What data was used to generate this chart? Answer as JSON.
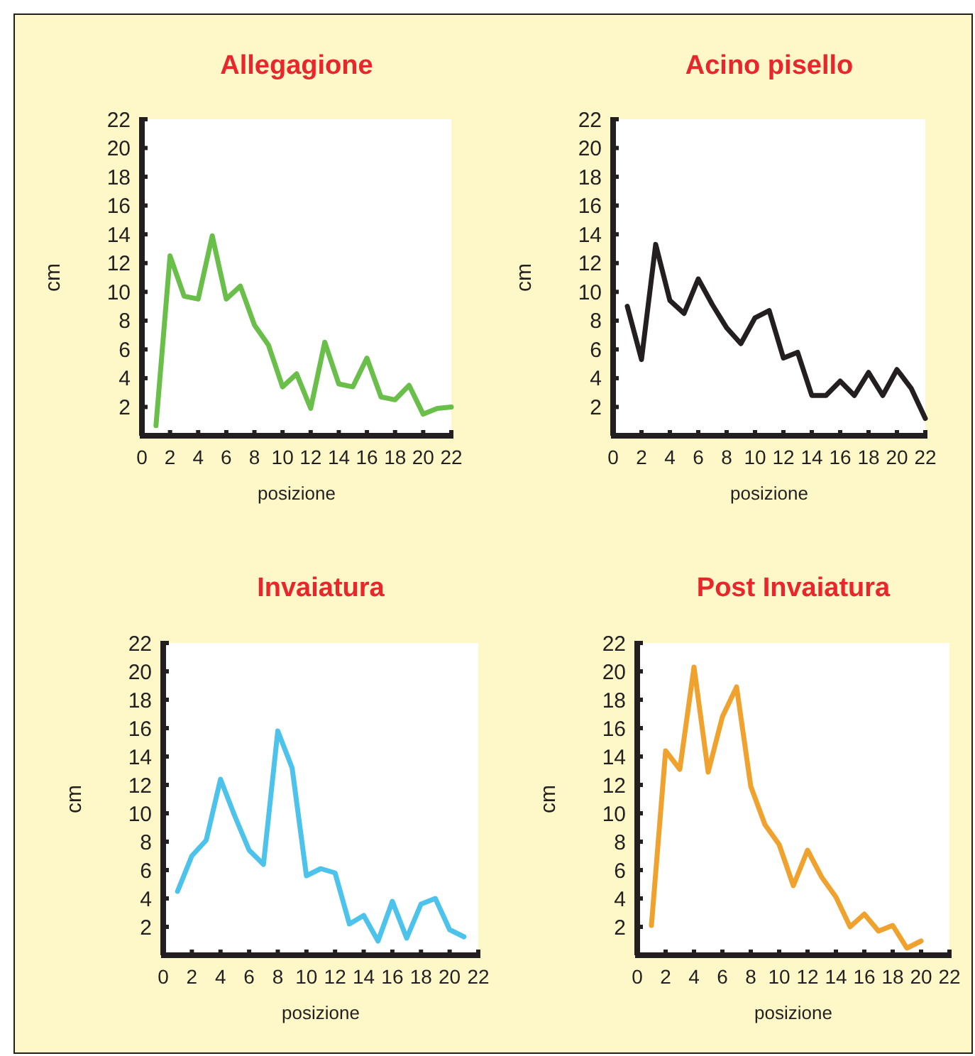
{
  "chart_data": [
    {
      "type": "line",
      "title": "Allegagione",
      "xlabel": "posizione",
      "ylabel": "cm",
      "x": [
        1,
        2,
        3,
        4,
        5,
        6,
        7,
        8,
        9,
        10,
        11,
        12,
        13,
        14,
        15,
        16,
        17,
        18,
        19,
        20,
        21,
        22
      ],
      "series": [
        {
          "color": "#6abf4b",
          "values": [
            0.7,
            12.5,
            9.7,
            9.5,
            13.9,
            9.5,
            10.4,
            7.7,
            6.3,
            3.4,
            4.3,
            1.9,
            6.5,
            3.6,
            3.4,
            5.4,
            2.7,
            2.5,
            3.5,
            1.5,
            1.9,
            2.0
          ]
        }
      ],
      "xlim": [
        0,
        22
      ],
      "xticks": [
        0,
        2,
        4,
        6,
        8,
        10,
        12,
        14,
        16,
        18,
        20,
        22
      ],
      "ylim": [
        0,
        22
      ],
      "yticks": [
        2,
        4,
        6,
        8,
        10,
        12,
        14,
        16,
        18,
        20,
        22
      ],
      "grid": false,
      "marker": "none",
      "line_style": "solid"
    },
    {
      "type": "line",
      "title": "Acino pisello",
      "xlabel": "posizione",
      "ylabel": "cm",
      "x": [
        1,
        2,
        3,
        4,
        5,
        6,
        7,
        8,
        9,
        10,
        11,
        12,
        13,
        14,
        15,
        16,
        17,
        18,
        19,
        20,
        21,
        22
      ],
      "series": [
        {
          "color": "#231f20",
          "values": [
            9.0,
            5.3,
            13.3,
            9.4,
            8.5,
            10.9,
            9.1,
            7.5,
            6.4,
            8.2,
            8.7,
            5.4,
            5.8,
            2.8,
            2.8,
            3.8,
            2.8,
            4.4,
            2.8,
            4.6,
            3.3,
            1.2
          ]
        }
      ],
      "xlim": [
        0,
        22
      ],
      "xticks": [
        0,
        2,
        4,
        6,
        8,
        10,
        12,
        14,
        16,
        18,
        20,
        22
      ],
      "ylim": [
        0,
        22
      ],
      "yticks": [
        2,
        4,
        6,
        8,
        10,
        12,
        14,
        16,
        18,
        20,
        22
      ],
      "grid": false,
      "marker": "none",
      "line_style": "solid"
    },
    {
      "type": "line",
      "title": "Invaiatura",
      "xlabel": "posizione",
      "ylabel": "cm",
      "x": [
        1,
        2,
        3,
        4,
        5,
        6,
        7,
        8,
        9,
        10,
        11,
        12,
        13,
        14,
        15,
        16,
        17,
        18,
        19,
        20,
        21
      ],
      "series": [
        {
          "color": "#4dc3ec",
          "values": [
            4.5,
            7.0,
            8.1,
            12.4,
            9.8,
            7.4,
            6.4,
            15.8,
            13.2,
            5.6,
            6.1,
            5.8,
            2.2,
            2.8,
            1.0,
            3.8,
            1.2,
            3.6,
            4.0,
            1.8,
            1.3
          ]
        }
      ],
      "xlim": [
        0,
        22
      ],
      "xticks": [
        0,
        2,
        4,
        6,
        8,
        10,
        12,
        14,
        16,
        18,
        20,
        22
      ],
      "ylim": [
        0,
        22
      ],
      "yticks": [
        2,
        4,
        6,
        8,
        10,
        12,
        14,
        16,
        18,
        20,
        22
      ],
      "grid": false,
      "marker": "none",
      "line_style": "solid"
    },
    {
      "type": "line",
      "title": "Post Invaiatura",
      "xlabel": "posizione",
      "ylabel": "cm",
      "x": [
        1,
        2,
        3,
        4,
        5,
        6,
        7,
        8,
        9,
        10,
        11,
        12,
        13,
        14,
        15,
        16,
        17,
        18,
        19,
        20
      ],
      "series": [
        {
          "color": "#f0a22e",
          "values": [
            2.1,
            14.4,
            13.1,
            20.3,
            12.9,
            16.8,
            18.9,
            11.9,
            9.2,
            7.8,
            4.9,
            7.4,
            5.5,
            4.1,
            2.0,
            2.9,
            1.7,
            2.1,
            0.5,
            1.0
          ]
        }
      ],
      "xlim": [
        0,
        22
      ],
      "xticks": [
        0,
        2,
        4,
        6,
        8,
        10,
        12,
        14,
        16,
        18,
        20,
        22
      ],
      "ylim": [
        0,
        22
      ],
      "yticks": [
        2,
        4,
        6,
        8,
        10,
        12,
        14,
        16,
        18,
        20,
        22
      ],
      "grid": false,
      "marker": "none",
      "line_style": "solid"
    }
  ]
}
